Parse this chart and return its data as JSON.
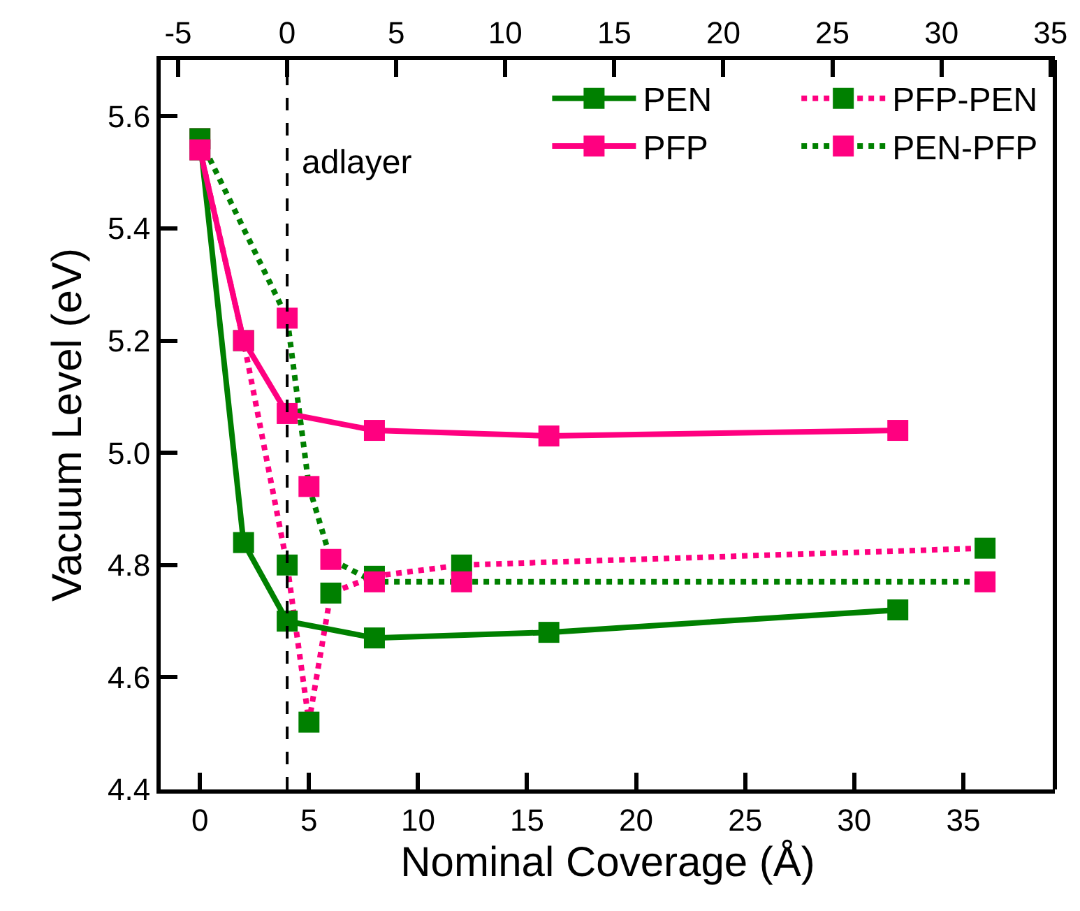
{
  "chart_data": {
    "type": "line",
    "xlabel": "Nominal Coverage (Å)",
    "ylabel": "Vacuum Level (eV)",
    "xlim": [
      -1.8,
      39.2
    ],
    "xticks": [
      0,
      5,
      10,
      15,
      20,
      25,
      30,
      35
    ],
    "x2lim": [
      -5.8,
      35.2
    ],
    "x2ticks": [
      -5,
      0,
      5,
      10,
      15,
      20,
      25,
      30,
      35
    ],
    "ylim": [
      4.4,
      5.7
    ],
    "yticks": [
      4.4,
      4.6,
      4.8,
      {
        "value": 5,
        "label": "5.0"
      },
      5.2,
      5.4,
      5.6
    ],
    "grid": false,
    "legend": "top right",
    "marker": "square",
    "ref_lines": [
      {
        "axis": "x",
        "value": 4,
        "color": "#000000",
        "line_style": "dashed"
      }
    ],
    "annotations": [
      "adlayer"
    ],
    "series": [
      {
        "name": "PEN",
        "color": "#008000",
        "line_style": "solid",
        "x": [
          0,
          2,
          4,
          8,
          16,
          32
        ],
        "values": [
          5.56,
          4.84,
          4.7,
          4.67,
          4.68,
          4.72
        ]
      },
      {
        "name": "PFP",
        "color": "#ff0080",
        "line_style": "solid",
        "x": [
          0,
          2,
          4,
          8,
          16,
          32
        ],
        "values": [
          5.54,
          5.2,
          5.07,
          5.04,
          5.03,
          5.04
        ]
      },
      {
        "name": "PFP-PEN",
        "color": "#ff0080",
        "colors": [
          "#008000",
          "#008000",
          "#008000",
          "#008000",
          "#008000",
          "#008000",
          "#008000",
          "#008000"
        ],
        "line_style": "dotted",
        "x": [
          0,
          2,
          4,
          5,
          6,
          8,
          12,
          36
        ],
        "values": [
          5.54,
          5.2,
          4.8,
          4.52,
          4.75,
          4.78,
          4.8,
          4.83
        ]
      },
      {
        "name": "PEN-PFP",
        "color": "#008000",
        "colors": [
          "#ff0080",
          "#ff0080",
          "#ff0080",
          "#ff0080",
          "#ff0080",
          "#ff0080",
          "#ff0080"
        ],
        "line_style": "dotted",
        "x": [
          0,
          4,
          5,
          6,
          8,
          12,
          36
        ],
        "values": [
          5.56,
          5.24,
          4.94,
          4.81,
          4.77,
          4.77,
          4.77
        ]
      }
    ]
  }
}
